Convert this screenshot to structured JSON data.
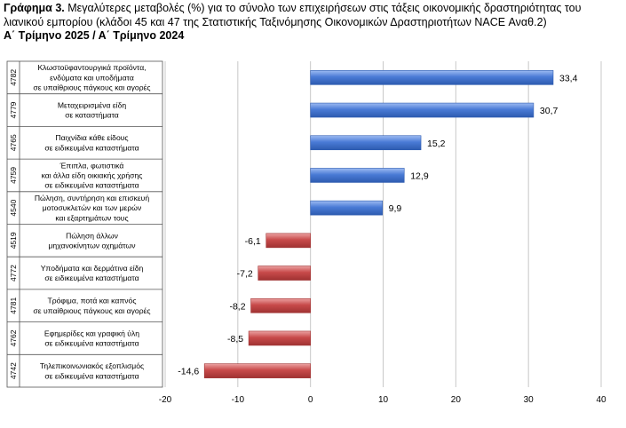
{
  "title": {
    "prefix": "Γράφημα 3.",
    "text": " Μεγαλύτερες μεταβολές (%) για το σύνολο των επιχειρήσεων στις τάξεις οικονομικής δραστηριότητας του λιανικού εμπορίου (κλάδοι 45 και 47 της Στατιστικής Ταξινόμησης Οικονομικών Δραστηριοτήτων NACE Αναθ.2)",
    "subtitle": "Α΄ Τρίμηνο 2025 / Α΄ Τρίμηνο 2024"
  },
  "colors": {
    "positive": "#4a7bd6",
    "negative": "#c84a4a",
    "grid": "#c8c8c8",
    "border": "#555555"
  },
  "chart_data": {
    "type": "bar",
    "orientation": "horizontal",
    "xlim": [
      -20,
      40
    ],
    "xticks": [
      "-20",
      "-10",
      "0",
      "10",
      "20",
      "30",
      "40"
    ],
    "grid": "vertical",
    "categories": [
      {
        "code": "4782",
        "label": [
          "Κλωστοϋφαντουργικά προϊόντα,",
          "ενδύματα και υποδήματα",
          "σε υπαίθριους πάγκους και αγορές"
        ],
        "value": 33.4,
        "value_label": "33,4"
      },
      {
        "code": "4779",
        "label": [
          "Μεταχειρισμένα είδη",
          "σε καταστήματα"
        ],
        "value": 30.7,
        "value_label": "30,7"
      },
      {
        "code": "4765",
        "label": [
          "Παιχνίδια κάθε είδους",
          "σε ειδικευμένα καταστήματα"
        ],
        "value": 15.2,
        "value_label": "15,2"
      },
      {
        "code": "4759",
        "label": [
          "Έπιπλα, φωτιστικά",
          "και άλλα είδη οικιακής χρήσης",
          "σε ειδικευμένα καταστήματα"
        ],
        "value": 12.9,
        "value_label": "12,9"
      },
      {
        "code": "4540",
        "label": [
          "Πώληση, συντήρηση και επισκευή",
          "μοτοσυκλετών και των μερών",
          "και εξαρτημάτων τους"
        ],
        "value": 9.9,
        "value_label": "9,9"
      },
      {
        "code": "4519",
        "label": [
          "Πώληση άλλων",
          "μηχανοκίνητων οχημάτων"
        ],
        "value": -6.1,
        "value_label": "-6,1"
      },
      {
        "code": "4772",
        "label": [
          "Υποδήματα και δερμάτινα είδη",
          "σε ειδικευμένα καταστήματα"
        ],
        "value": -7.2,
        "value_label": "-7,2"
      },
      {
        "code": "4781",
        "label": [
          "Τρόφιμα, ποτά και καπνός",
          "σε υπαίθριους πάγκους και αγορές"
        ],
        "value": -8.2,
        "value_label": "-8,2"
      },
      {
        "code": "4762",
        "label": [
          "Εφημερίδες και γραφική ύλη",
          "σε ειδικευμένα καταστήματα"
        ],
        "value": -8.5,
        "value_label": "-8,5"
      },
      {
        "code": "4742",
        "label": [
          "Τηλεπικοινωνιακός εξοπλισμός",
          "σε ειδικευμένα καταστήματα"
        ],
        "value": -14.6,
        "value_label": "-14,6"
      }
    ]
  }
}
